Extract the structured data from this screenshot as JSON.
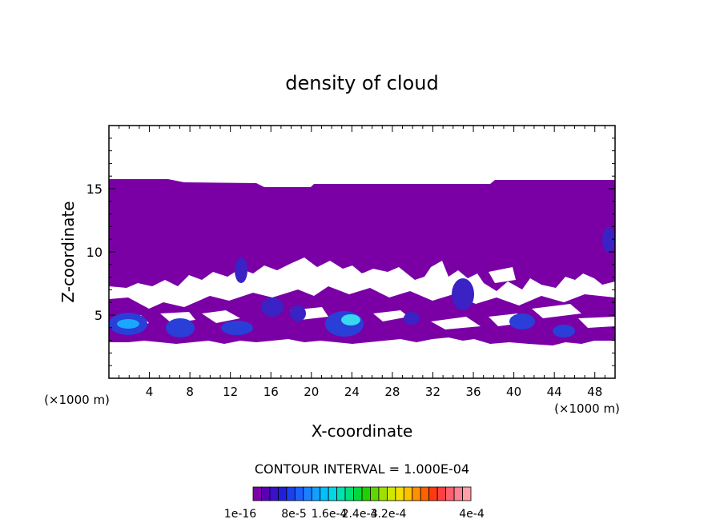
{
  "chart_data": {
    "type": "heatmap",
    "title": "density of cloud",
    "xlabel": "X-coordinate",
    "ylabel": "Z-coordinate",
    "x_unit": "(×1000 m)",
    "y_unit": "(×1000 m)",
    "xlim": [
      0,
      50
    ],
    "ylim": [
      0,
      20
    ],
    "x_ticks": [
      4,
      8,
      12,
      16,
      20,
      24,
      28,
      32,
      36,
      40,
      44,
      48
    ],
    "y_ticks": [
      5,
      10,
      15
    ],
    "contour_interval_label": "CONTOUR INTERVAL = 1.000E-04",
    "colorbar": {
      "labels": [
        "1e-16",
        "8e-5",
        "1.6e-4",
        "2.4e-4",
        "3.2e-4",
        "4e-4"
      ],
      "colors": [
        "#7b00a8",
        "#5a00b4",
        "#3a10c8",
        "#2020dc",
        "#1a40f0",
        "#1a60ff",
        "#1a80ff",
        "#10a0ff",
        "#00c0ff",
        "#00d8e8",
        "#00e0b0",
        "#00e078",
        "#00d840",
        "#20d000",
        "#60d800",
        "#a0e000",
        "#d0e800",
        "#f0e000",
        "#ffc000",
        "#ff9000",
        "#ff6000",
        "#ff3a10",
        "#ff4040",
        "#ff6070",
        "#ff8090",
        "#ffa0a8"
      ]
    },
    "regions": [
      {
        "level": "1e-16",
        "description": "cloud layer",
        "top_boundary": [
          [
            0,
            15.7
          ],
          [
            4.5,
            15.7
          ],
          [
            6,
            15.5
          ],
          [
            14,
            15.4
          ],
          [
            15,
            15.1
          ],
          [
            20,
            15.1
          ],
          [
            20.5,
            15.3
          ],
          [
            38,
            15.3
          ],
          [
            38.5,
            15.5
          ],
          [
            43.5,
            15.5
          ],
          [
            44,
            15.7
          ],
          [
            50,
            15.7
          ]
        ],
        "bottom_range": [
          2.8,
          3.2
        ]
      },
      {
        "level": "8e-5",
        "centers": [
          [
            2,
            4.3
          ],
          [
            7,
            4
          ],
          [
            12.5,
            3.9
          ],
          [
            13,
            8.5
          ],
          [
            17,
            5.5
          ],
          [
            24,
            4.6
          ],
          [
            30,
            4.6
          ],
          [
            35,
            6.5
          ],
          [
            40.5,
            4.4
          ],
          [
            45,
            3.9
          ]
        ]
      },
      {
        "level": "1.6e-4",
        "centers": [
          [
            2.5,
            4.4
          ],
          [
            24,
            4.7
          ]
        ]
      }
    ]
  }
}
